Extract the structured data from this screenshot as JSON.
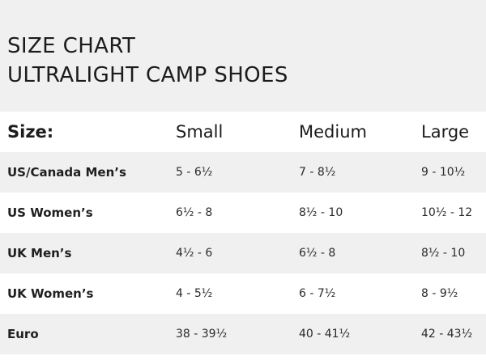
{
  "title": {
    "line1": "SIZE CHART",
    "line2": "ULTRALIGHT CAMP SHOES"
  },
  "table": {
    "headers": [
      "Size:",
      "Small",
      "Medium",
      "Large"
    ],
    "rows": [
      [
        "US/Canada Men’s",
        "5 - 6½",
        "7 - 8½",
        "9 - 10½"
      ],
      [
        "US Women’s",
        "6½ - 8",
        "8½ - 10",
        "10½ - 12"
      ],
      [
        "UK Men’s",
        "4½ - 6",
        "6½ - 8",
        "8½  - 10"
      ],
      [
        "UK Women’s",
        "4 - 5½",
        "6 - 7½",
        "8 - 9½"
      ],
      [
        "Euro",
        "38 - 39½",
        "40 - 41½",
        "42 - 43½"
      ]
    ]
  },
  "colors": {
    "stripe": "#f0f0f0",
    "background": "#ffffff",
    "text": "#1f1f1f"
  }
}
